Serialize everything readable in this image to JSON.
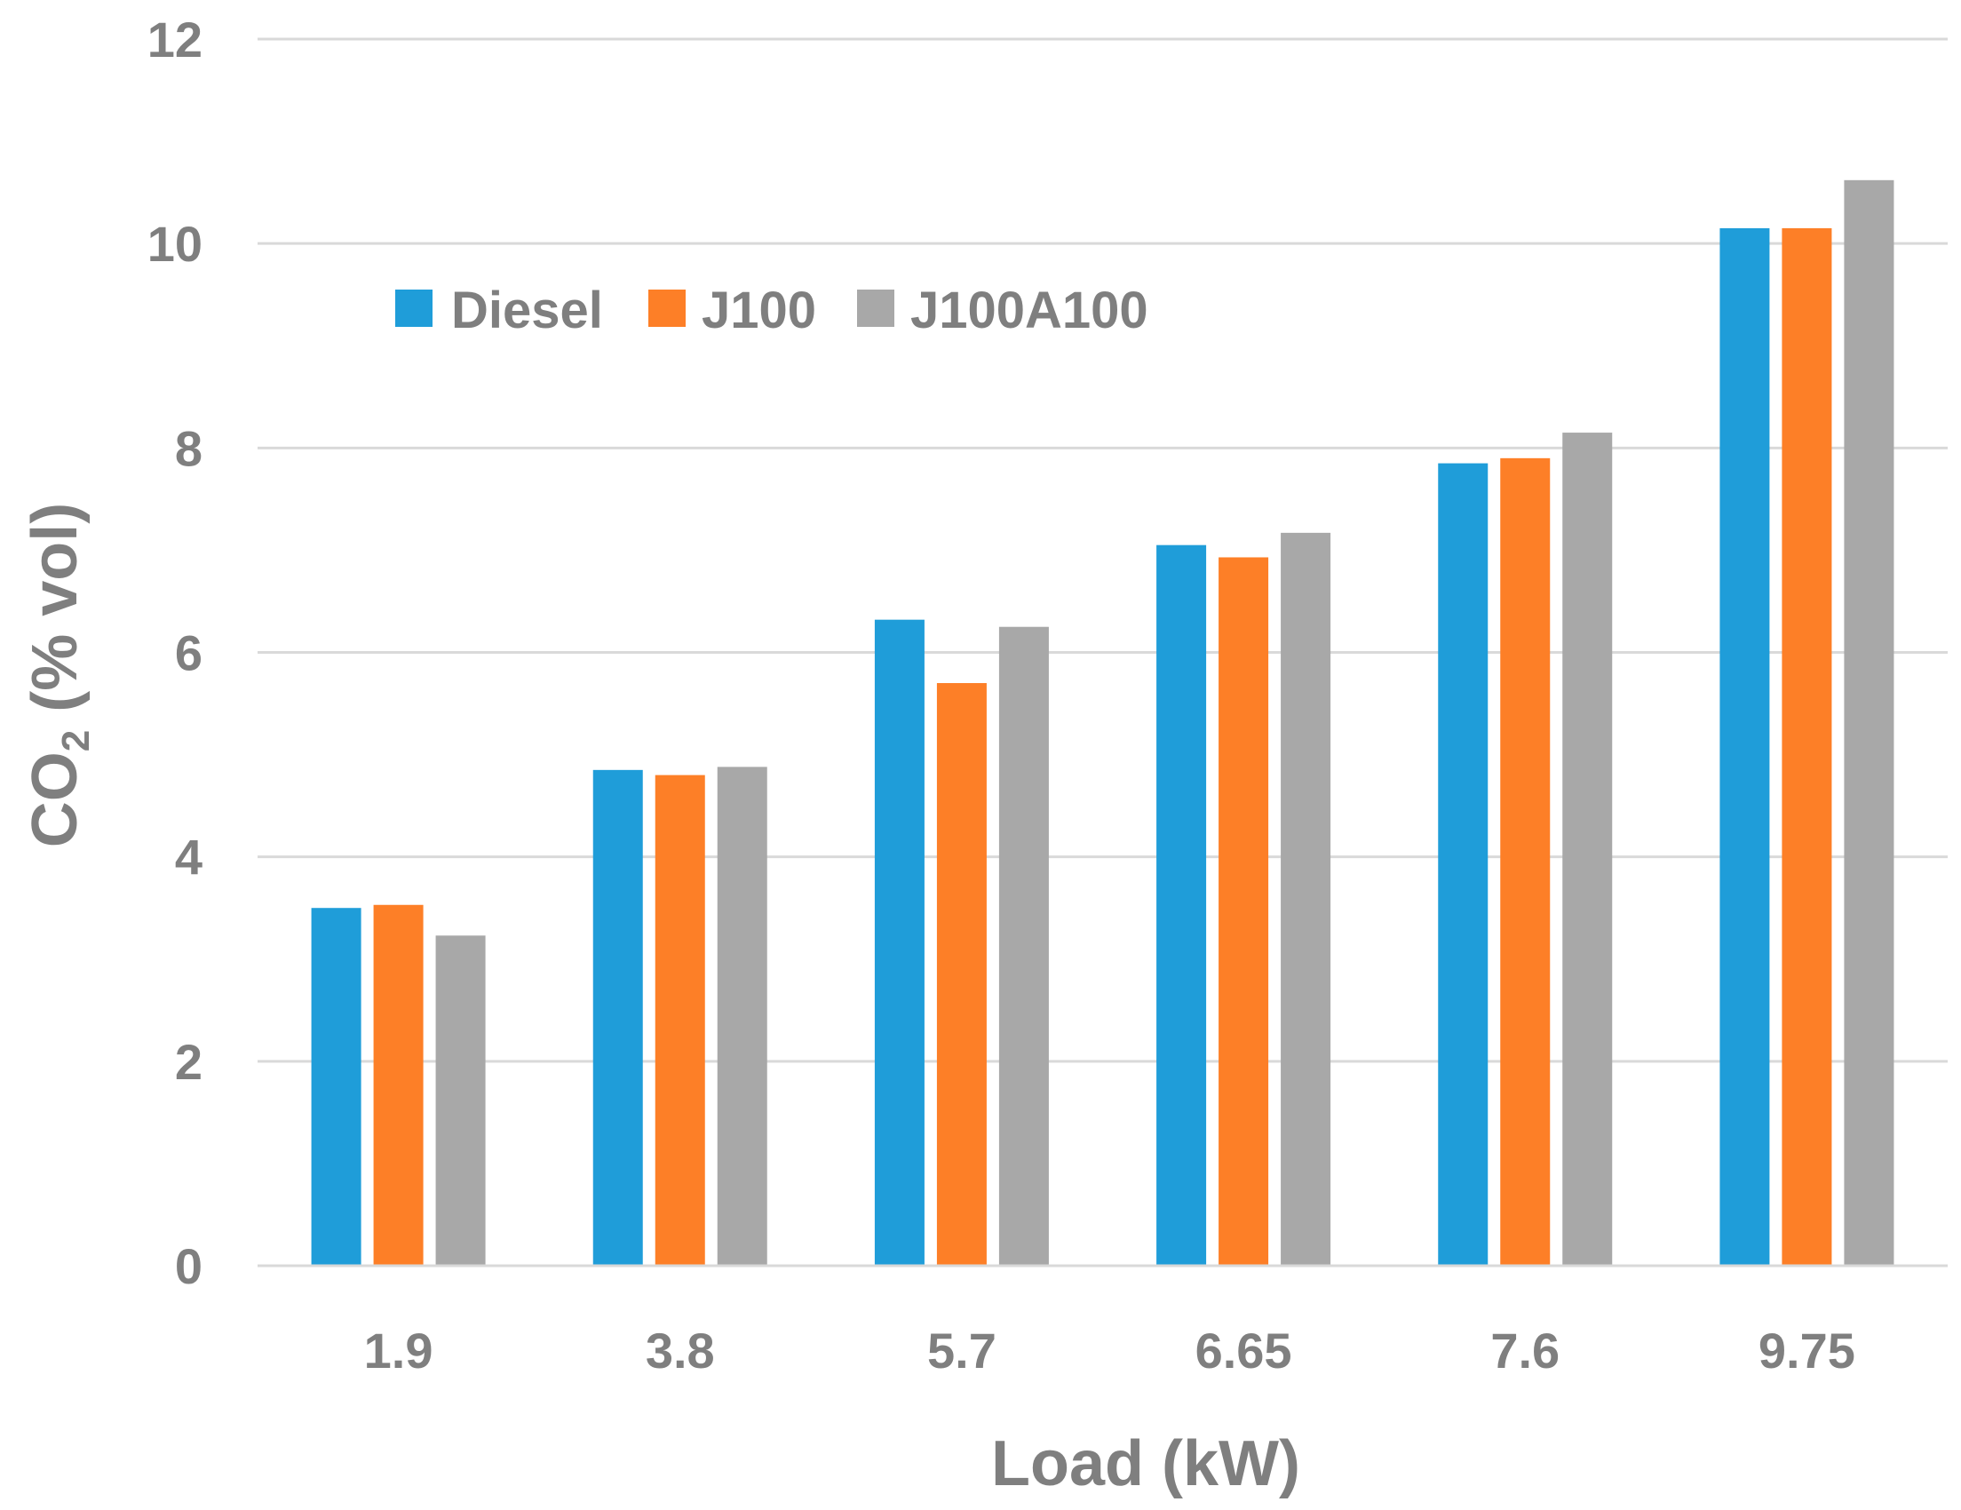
{
  "chart_data": {
    "type": "bar",
    "title": "",
    "xlabel": "Load (kW)",
    "ylabel": {
      "main": "CO",
      "subscript": "2",
      "rest": " (% vol)"
    },
    "categories": [
      "1.9",
      "3.8",
      "5.7",
      "6.65",
      "7.6",
      "9.75"
    ],
    "series": [
      {
        "name": "Diesel",
        "color": "#1f9dd9",
        "values": [
          3.5,
          4.85,
          6.32,
          7.05,
          7.85,
          10.15
        ]
      },
      {
        "name": "J100",
        "color": "#fd7f27",
        "values": [
          3.53,
          4.8,
          5.7,
          6.93,
          7.9,
          10.15
        ]
      },
      {
        "name": "J100A100",
        "color": "#a8a8a8",
        "values": [
          3.23,
          4.88,
          6.25,
          7.17,
          8.15,
          10.62
        ]
      }
    ],
    "yticks": [
      "0",
      "2",
      "4",
      "6",
      "8",
      "10",
      "12"
    ],
    "ylim": [
      0,
      12
    ],
    "grid": true,
    "legend_position": "top-left",
    "gridline_color": "#d9d9d9",
    "text_color": "#7f7f7f"
  }
}
